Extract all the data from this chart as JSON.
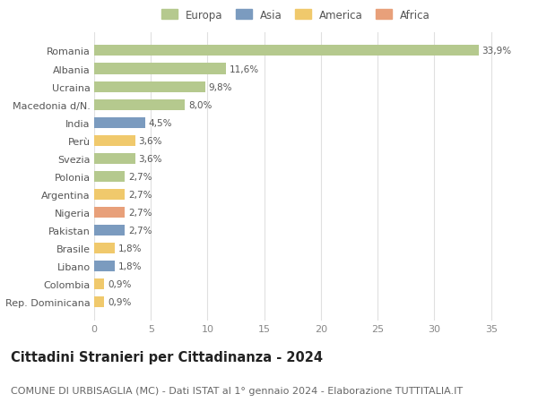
{
  "title": "Cittadini Stranieri per Cittadinanza - 2024",
  "subtitle": "COMUNE DI URBISAGLIA (MC) - Dati ISTAT al 1° gennaio 2024 - Elaborazione TUTTITALIA.IT",
  "countries": [
    "Romania",
    "Albania",
    "Ucraina",
    "Macedonia d/N.",
    "India",
    "Perù",
    "Svezia",
    "Polonia",
    "Argentina",
    "Nigeria",
    "Pakistan",
    "Brasile",
    "Libano",
    "Colombia",
    "Rep. Dominicana"
  ],
  "values": [
    33.9,
    11.6,
    9.8,
    8.0,
    4.5,
    3.6,
    3.6,
    2.7,
    2.7,
    2.7,
    2.7,
    1.8,
    1.8,
    0.9,
    0.9
  ],
  "labels": [
    "33,9%",
    "11,6%",
    "9,8%",
    "8,0%",
    "4,5%",
    "3,6%",
    "3,6%",
    "2,7%",
    "2,7%",
    "2,7%",
    "2,7%",
    "1,8%",
    "1,8%",
    "0,9%",
    "0,9%"
  ],
  "continents": [
    "Europa",
    "Europa",
    "Europa",
    "Europa",
    "Asia",
    "America",
    "Europa",
    "Europa",
    "America",
    "Africa",
    "Asia",
    "America",
    "Asia",
    "America",
    "America"
  ],
  "continent_colors": {
    "Europa": "#b5c98e",
    "Asia": "#7b9bbf",
    "America": "#f0c96c",
    "Africa": "#e8a07a"
  },
  "xlim": [
    0,
    37
  ],
  "xticks": [
    0,
    5,
    10,
    15,
    20,
    25,
    30,
    35
  ],
  "bg_color": "#ffffff",
  "grid_color": "#e0e0e0",
  "bar_height": 0.6,
  "title_fontsize": 10.5,
  "subtitle_fontsize": 8,
  "label_fontsize": 7.5,
  "tick_fontsize": 8,
  "legend_fontsize": 8.5,
  "legend_order": [
    "Europa",
    "Asia",
    "America",
    "Africa"
  ]
}
